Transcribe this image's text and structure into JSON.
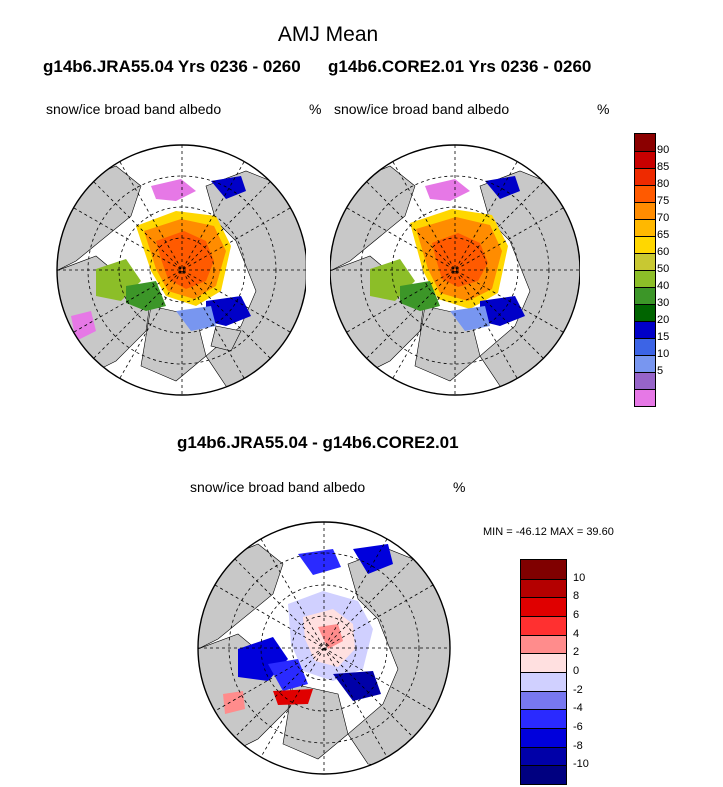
{
  "figure": {
    "title": "AMJ Mean",
    "panel_top_left_heading": "g14b6.JRA55.04  Yrs 0236 - 0260",
    "panel_top_right_heading": "g14b6.CORE2.01  Yrs 0236 - 0260",
    "difference_heading": "g14b6.JRA55.04 - g14b6.CORE2.01"
  },
  "panels": {
    "top_left": {
      "variable": "snow/ice broad band albedo",
      "units": "%"
    },
    "top_right": {
      "variable": "snow/ice broad band albedo",
      "units": "%"
    },
    "bottom": {
      "variable": "snow/ice broad band albedo",
      "units": "%",
      "stats": "MIN = -46.12 MAX =  39.60"
    }
  },
  "colorbar_main": {
    "labels": [
      "90",
      "85",
      "80",
      "75",
      "70",
      "65",
      "60",
      "50",
      "40",
      "30",
      "20",
      "15",
      "10",
      "5"
    ],
    "colors": [
      "#8b0000",
      "#c80000",
      "#ee2a00",
      "#ff5a00",
      "#ff8c00",
      "#ffb800",
      "#ffd700",
      "#c8c832",
      "#8cbe28",
      "#3c9628",
      "#006400",
      "#0000c8",
      "#3c64e6",
      "#7896f0",
      "#9664c8",
      "#e678e6"
    ]
  },
  "colorbar_diff": {
    "labels": [
      "10",
      "8",
      "6",
      "4",
      "2",
      "0",
      "-2",
      "-4",
      "-6",
      "-8",
      "-10"
    ],
    "colors": [
      "#800000",
      "#b40000",
      "#e00000",
      "#ff3030",
      "#ff8c8c",
      "#ffe0e0",
      "#d0d0ff",
      "#7878f0",
      "#2a2aff",
      "#0000dc",
      "#0000a8",
      "#000080"
    ]
  }
}
